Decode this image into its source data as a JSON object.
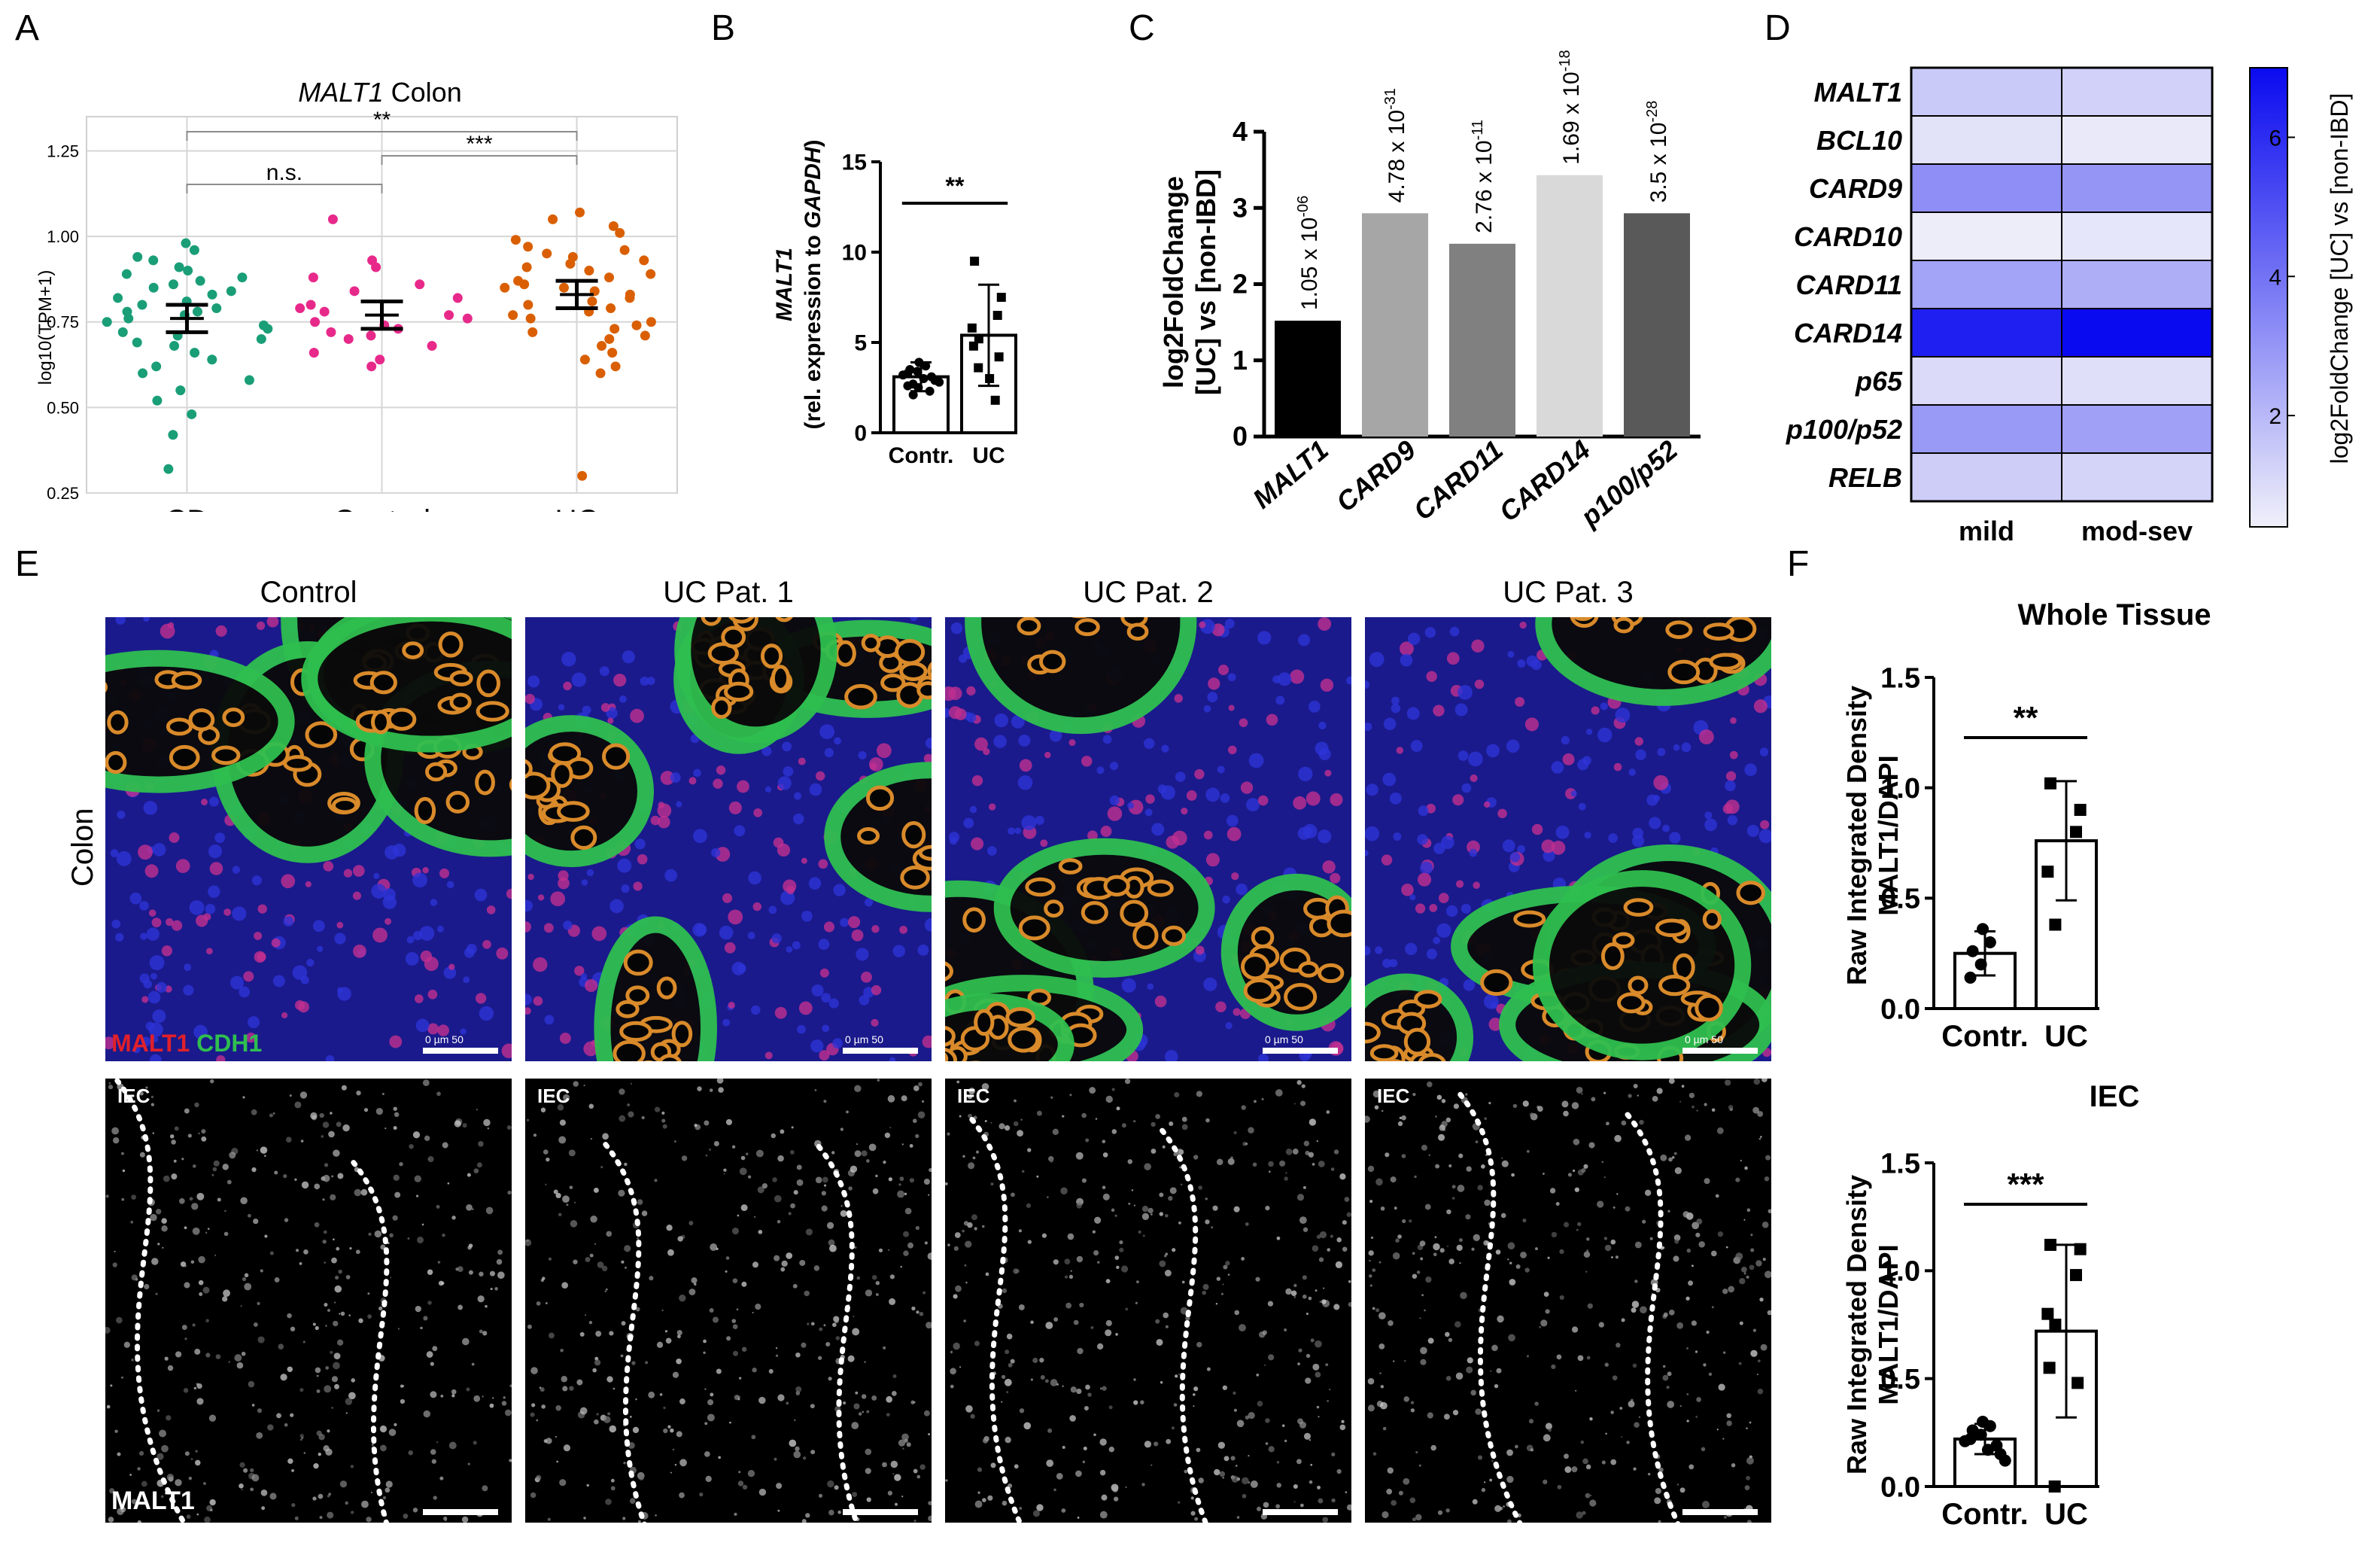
{
  "panels": {
    "A": "A",
    "B": "B",
    "C": "C",
    "D": "D",
    "E": "E",
    "F": "F"
  },
  "panelA": {
    "title_gene": "MALT1",
    "title_rest": " Colon",
    "ylabel": "log10(TPM+1)",
    "sig_cd_uc": "**",
    "sig_cd_control": "n.s.",
    "sig_control_uc": "***",
    "chart_data": {
      "type": "scatter",
      "categories": [
        "CD",
        "Control",
        "UC"
      ],
      "yticks": [
        "0.25",
        "0.50",
        "0.75",
        "1.00",
        "1.25"
      ],
      "ylim": [
        0.25,
        1.35
      ],
      "grid": true,
      "series": [
        {
          "category": "CD",
          "color": "#1a9e77",
          "mean": 0.76,
          "ci": [
            0.72,
            0.8
          ],
          "values": [
            0.98,
            0.96,
            0.94,
            0.93,
            0.91,
            0.9,
            0.89,
            0.88,
            0.87,
            0.86,
            0.85,
            0.84,
            0.83,
            0.82,
            0.81,
            0.8,
            0.79,
            0.78,
            0.78,
            0.77,
            0.76,
            0.75,
            0.74,
            0.73,
            0.72,
            0.71,
            0.7,
            0.69,
            0.68,
            0.66,
            0.64,
            0.62,
            0.6,
            0.58,
            0.55,
            0.52,
            0.48,
            0.42,
            0.32
          ]
        },
        {
          "category": "Control",
          "color": "#e7298a",
          "mean": 0.77,
          "ci": [
            0.73,
            0.81
          ],
          "values": [
            1.05,
            0.93,
            0.91,
            0.88,
            0.86,
            0.84,
            0.82,
            0.8,
            0.79,
            0.78,
            0.77,
            0.76,
            0.75,
            0.74,
            0.73,
            0.72,
            0.71,
            0.7,
            0.68,
            0.66,
            0.64,
            0.62
          ]
        },
        {
          "category": "UC",
          "color": "#d95f02",
          "mean": 0.83,
          "ci": [
            0.79,
            0.87
          ],
          "values": [
            1.07,
            1.05,
            1.03,
            1.01,
            0.99,
            0.97,
            0.96,
            0.95,
            0.94,
            0.93,
            0.92,
            0.91,
            0.9,
            0.89,
            0.88,
            0.87,
            0.86,
            0.85,
            0.85,
            0.84,
            0.83,
            0.82,
            0.81,
            0.8,
            0.79,
            0.78,
            0.77,
            0.76,
            0.75,
            0.74,
            0.73,
            0.72,
            0.71,
            0.7,
            0.68,
            0.66,
            0.64,
            0.62,
            0.6,
            0.3
          ]
        }
      ]
    }
  },
  "panelB": {
    "ylabel_gene": "MALT1",
    "ylabel_rest_a": "(rel. expression to ",
    "ylabel_gene2": "GAPDH",
    "ylabel_rest_b": ")",
    "sig": "**",
    "chart_data": {
      "type": "bar",
      "categories": [
        "Contr.",
        "UC"
      ],
      "values": [
        3.1,
        5.4
      ],
      "sd": [
        0.8,
        2.8
      ],
      "yticks": [
        "0",
        "5",
        "10",
        "15"
      ],
      "ylim": [
        0,
        15
      ],
      "points": [
        [
          3.9,
          3.7,
          3.5,
          3.4,
          3.3,
          3.2,
          3.1,
          3.0,
          2.9,
          2.8,
          2.7,
          2.6,
          2.5,
          2.3,
          2.1
        ],
        [
          9.5,
          7.5,
          6.5,
          5.8,
          5.2,
          4.8,
          4.2,
          3.6,
          3.0,
          1.8
        ]
      ]
    }
  },
  "panelC": {
    "ylabel_line1": "log2FoldChange",
    "ylabel_line2": "[UC] vs [non-IBD]",
    "chart_data": {
      "type": "bar",
      "categories": [
        "MALT1",
        "CARD9",
        "CARD11",
        "CARD14",
        "p100/p52"
      ],
      "values": [
        1.52,
        2.93,
        2.53,
        3.43,
        2.93
      ],
      "colors": [
        "#000000",
        "#a6a6a6",
        "#808080",
        "#d9d9d9",
        "#595959"
      ],
      "pvalues": [
        {
          "base": "1.05 x 10",
          "exp": "-06"
        },
        {
          "base": "4.78 x 10",
          "exp": "-31"
        },
        {
          "base": "2.76 x 10",
          "exp": "-11"
        },
        {
          "base": "1.69 x 10",
          "exp": "-18"
        },
        {
          "base": "3.5 x 10",
          "exp": "-28"
        }
      ],
      "yticks": [
        "0",
        "1",
        "2",
        "3",
        "4"
      ],
      "ylim": [
        0,
        4
      ]
    }
  },
  "panelD": {
    "colorbar_label": "log2FoldChange [UC] vs [non-IBD]",
    "chart_data": {
      "type": "heatmap",
      "rows": [
        "MALT1",
        "BCL10",
        "CARD9",
        "CARD10",
        "CARD11",
        "CARD14",
        "p65",
        "p100/p52",
        "RELB"
      ],
      "columns": [
        "mild",
        "mod-sev"
      ],
      "values": [
        [
          1.5,
          1.3
        ],
        [
          0.8,
          0.6
        ],
        [
          3.2,
          3.0
        ],
        [
          0.5,
          0.7
        ],
        [
          2.6,
          2.3
        ],
        [
          6.4,
          7.0
        ],
        [
          1.0,
          0.9
        ],
        [
          2.9,
          2.7
        ],
        [
          1.4,
          1.2
        ]
      ],
      "colorbar_ticks": [
        "2",
        "4",
        "6"
      ],
      "range": [
        0.4,
        7.0
      ]
    }
  },
  "panelE": {
    "columns": [
      "Control",
      "UC Pat. 1",
      "UC Pat. 2",
      "UC Pat. 3"
    ],
    "row_label": "Colon",
    "legend_malt1": "MALT1",
    "legend_cdh1": " CDH1",
    "bottom_label": "MALT1",
    "iec": "IEC",
    "scale_text": "0     µm    50"
  },
  "panelF": {
    "top": {
      "title": "Whole Tissue",
      "ylabel_line1": "Raw Integrated Density",
      "ylabel_line2": "MALT1/DAPI",
      "sig": "**",
      "chart_data": {
        "type": "bar",
        "categories": [
          "Contr.",
          "UC"
        ],
        "values": [
          0.25,
          0.76
        ],
        "sd": [
          0.1,
          0.27
        ],
        "yticks": [
          "0.0",
          "0.5",
          "1.0",
          "1.5"
        ],
        "ylim": [
          0,
          1.5
        ],
        "points": [
          [
            0.36,
            0.3,
            0.26,
            0.2,
            0.14
          ],
          [
            1.02,
            0.9,
            0.8,
            0.62,
            0.38
          ]
        ]
      }
    },
    "bottom": {
      "title": "IEC",
      "ylabel_line1": "Raw Integrated Density",
      "ylabel_line2": "MALT1/DAPI",
      "sig": "***",
      "chart_data": {
        "type": "bar",
        "categories": [
          "Contr.",
          "UC"
        ],
        "values": [
          0.22,
          0.72
        ],
        "sd": [
          0.07,
          0.4
        ],
        "yticks": [
          "0.0",
          "0.5",
          "1.0",
          "1.5"
        ],
        "ylim": [
          0,
          1.5
        ],
        "points": [
          [
            0.3,
            0.28,
            0.26,
            0.24,
            0.22,
            0.21,
            0.19,
            0.17,
            0.15,
            0.12
          ],
          [
            1.12,
            1.1,
            0.98,
            0.8,
            0.75,
            0.55,
            0.48,
            0.0
          ]
        ]
      }
    }
  }
}
